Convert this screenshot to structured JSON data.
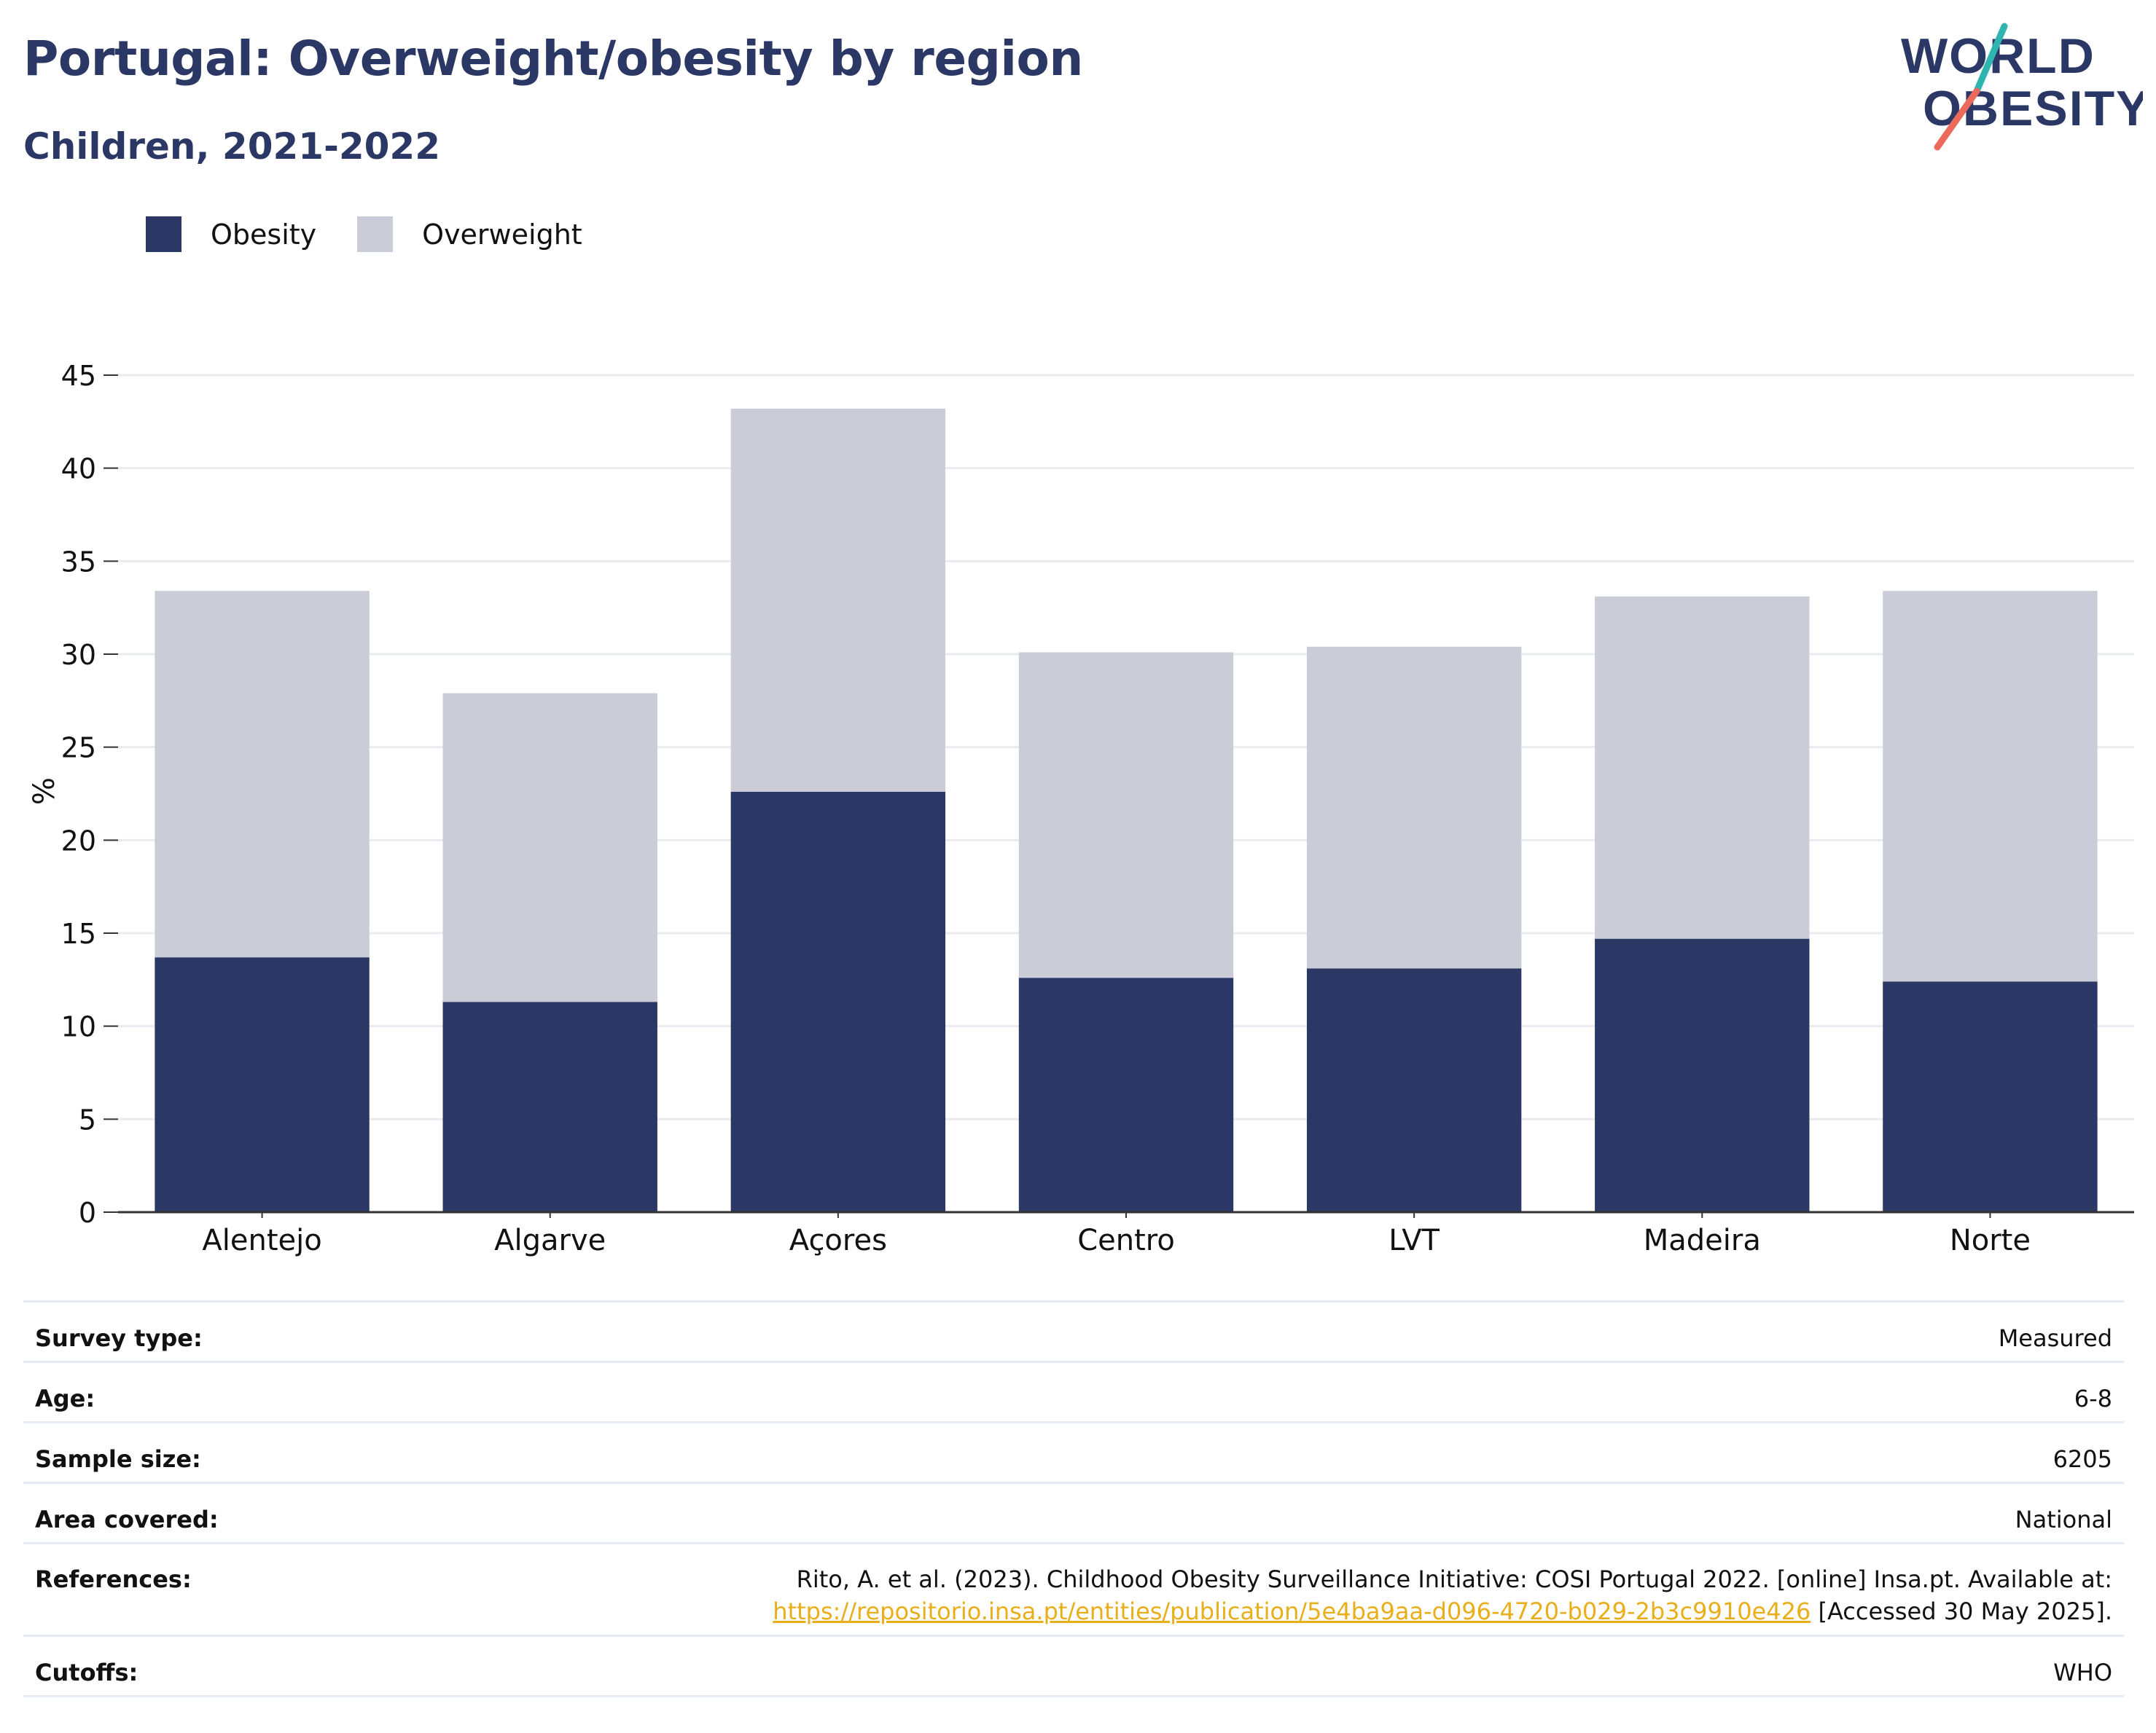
{
  "header": {
    "title": "Portugal: Overweight/obesity by region",
    "subtitle": "Children, 2021-2022"
  },
  "logo": {
    "line1": "WORLD",
    "line2": "OBESITY"
  },
  "legend": {
    "items": [
      {
        "label": "Obesity",
        "color": "#2b3765"
      },
      {
        "label": "Overweight",
        "color": "#caccd8"
      }
    ]
  },
  "chart_data": {
    "type": "bar",
    "stacked": true,
    "categories": [
      "Alentejo",
      "Algarve",
      "Açores",
      "Centro",
      "LVT",
      "Madeira",
      "Norte"
    ],
    "series": [
      {
        "name": "Obesity",
        "color": "#2b3765",
        "values": [
          13.7,
          11.3,
          22.6,
          12.6,
          13.1,
          14.7,
          12.4
        ]
      },
      {
        "name": "Overweight",
        "color": "#caccd8",
        "values": [
          19.7,
          16.6,
          20.6,
          17.5,
          17.3,
          18.4,
          21.0
        ]
      }
    ],
    "ylabel": "%",
    "ylim": [
      0,
      45
    ],
    "yticks": [
      0,
      5,
      10,
      15,
      20,
      25,
      30,
      35,
      40,
      45
    ],
    "grid": true,
    "legend_position": "top-left"
  },
  "meta": {
    "rows": [
      {
        "label": "Survey type:",
        "value": "Measured"
      },
      {
        "label": "Age:",
        "value": "6-8"
      },
      {
        "label": "Sample size:",
        "value": "6205"
      },
      {
        "label": "Area covered:",
        "value": "National"
      }
    ],
    "references": {
      "label": "References:",
      "text": "Rito, A. et al. (2023). Childhood Obesity Surveillance Initiative: COSI Portugal 2022. [online] Insa.pt. Available at:",
      "link": "https://repositorio.insa.pt/entities/publication/5e4ba9aa-d096-4720-b029-2b3c9910e426",
      "accessed": " [Accessed 30 May 2025]."
    },
    "cutoffs": {
      "label": "Cutoffs:",
      "value": "WHO"
    }
  }
}
